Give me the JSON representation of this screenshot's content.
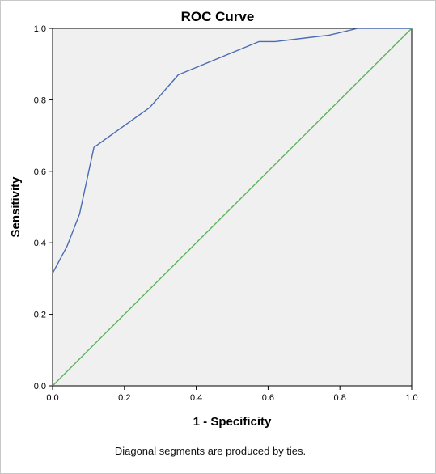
{
  "chart_data": {
    "type": "line",
    "title": "ROC Curve",
    "xlabel": "1 - Specificity",
    "ylabel": "Sensitivity",
    "footnote": "Diagonal segments are produced by ties.",
    "xlim": [
      0,
      1
    ],
    "ylim": [
      0,
      1
    ],
    "x_ticks": [
      "0.0",
      "0.2",
      "0.4",
      "0.6",
      "0.8",
      "1.0"
    ],
    "y_ticks": [
      "0.0",
      "0.2",
      "0.4",
      "0.6",
      "0.8",
      "1.0"
    ],
    "grid": false,
    "legend": "none",
    "series": [
      {
        "color": "#4a6cb3",
        "points": [
          [
            0.0,
            0.315
          ],
          [
            0.04,
            0.39
          ],
          [
            0.075,
            0.48
          ],
          [
            0.115,
            0.667
          ],
          [
            0.27,
            0.778
          ],
          [
            0.35,
            0.87
          ],
          [
            0.575,
            0.963
          ],
          [
            0.62,
            0.963
          ],
          [
            0.77,
            0.981
          ],
          [
            0.85,
            1.0
          ],
          [
            1.0,
            1.0
          ]
        ]
      },
      {
        "color": "#5ab55a",
        "points": [
          [
            0.0,
            0.0
          ],
          [
            1.0,
            1.0
          ]
        ]
      }
    ],
    "colors": {
      "plot_background": "#f0f0f0",
      "axis": "#000000"
    }
  }
}
